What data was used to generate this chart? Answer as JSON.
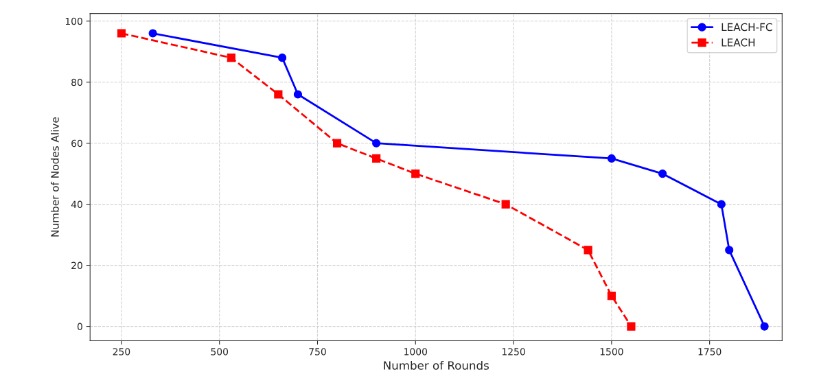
{
  "chart_data": {
    "type": "line",
    "xlabel": "Number of Rounds",
    "ylabel": "Number of Nodes Alive",
    "xlim": [
      170,
      1935
    ],
    "xticks": [
      250,
      500,
      750,
      1000,
      1250,
      1500,
      1750
    ],
    "ylim": [
      -4.7,
      102.5
    ],
    "yticks": [
      0,
      20,
      40,
      60,
      80,
      100
    ],
    "grid": true,
    "legend": "top right",
    "series": [
      {
        "name": "LEACH-FC",
        "color": "#0000ff",
        "marker": "circle",
        "line_style": "solid",
        "x": [
          330,
          660,
          700,
          900,
          1500,
          1630,
          1780,
          1800,
          1890
        ],
        "values": [
          96,
          88,
          76,
          60,
          55,
          50,
          40,
          25,
          0
        ]
      },
      {
        "name": "LEACH",
        "color": "#ff0000",
        "marker": "square",
        "line_style": "dashed",
        "x": [
          250,
          530,
          650,
          800,
          900,
          1000,
          1230,
          1440,
          1500,
          1550
        ],
        "values": [
          96,
          88,
          76,
          60,
          55,
          50,
          40,
          25,
          10,
          0
        ]
      }
    ]
  }
}
